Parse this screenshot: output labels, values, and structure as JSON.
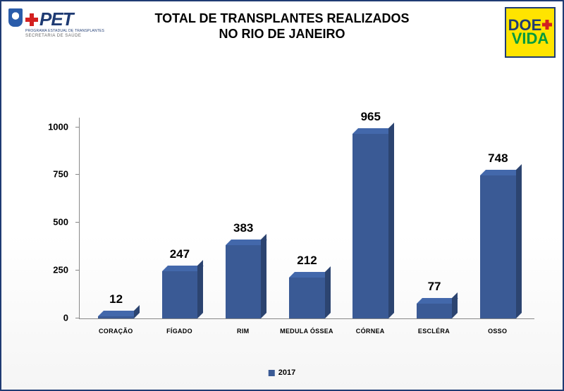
{
  "title_line1": "TOTAL DE TRANSPLANTES REALIZADOS",
  "title_line2": "NO RIO DE JANEIRO",
  "logo_left": {
    "brand": "PET",
    "subtitle": "PROGRAMA ESTADUAL DE TRANSPLANTES",
    "footer": "SECRETARIA DE SAÚDE"
  },
  "logo_right": {
    "line1": "DOE",
    "line2": "VIDA"
  },
  "chart": {
    "type": "bar",
    "series_name": "2017",
    "bar_color": "#3a5a95",
    "background_color": "#ffffff",
    "axis_color": "#888888",
    "text_color": "#000000",
    "value_fontsize": 17,
    "label_fontsize": 9,
    "ymin": 0,
    "ymax": 1050,
    "yticks": [
      0,
      250,
      500,
      750,
      1000
    ],
    "categories": [
      "CORAÇÃO",
      "FÍGADO",
      "RIM",
      "MEDULA ÓSSEA",
      "CÓRNEA",
      "ESCLÉRA",
      "OSSO"
    ],
    "values": [
      12,
      247,
      383,
      212,
      965,
      77,
      748
    ]
  }
}
